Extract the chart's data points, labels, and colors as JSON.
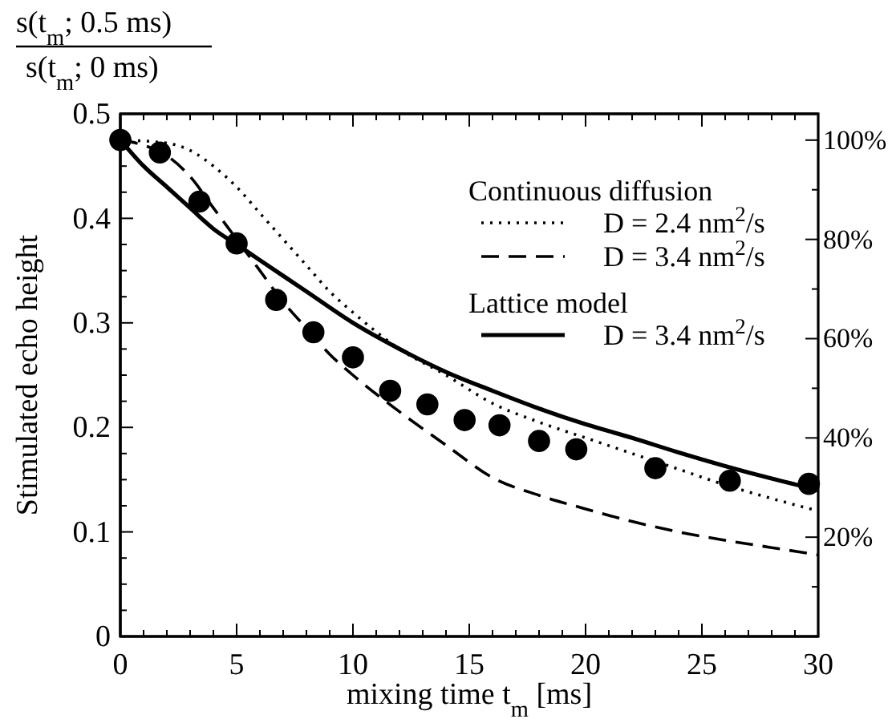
{
  "chart_data": {
    "type": "line",
    "title": "s(t$_{m}$; 0.5 ms)",
    "subtitle": "s(t$_{m}$; 0 ms)",
    "xlabel": "mixing time t$_{m}$ [ms]",
    "ylabel": "Stimulated echo height",
    "annotations": [
      "Continuous diffusion",
      "Lattice model"
    ],
    "xlim": [
      0,
      30
    ],
    "xticks": [
      0,
      {
        "value": 1,
        "label": null
      },
      {
        "value": 2,
        "label": null
      },
      {
        "value": 3,
        "label": null
      },
      {
        "value": 4,
        "label": null
      },
      5,
      {
        "value": 6,
        "label": null
      },
      {
        "value": 7,
        "label": null
      },
      {
        "value": 8,
        "label": null
      },
      {
        "value": 9,
        "label": null
      },
      10,
      {
        "value": 11,
        "label": null
      },
      {
        "value": 12,
        "label": null
      },
      {
        "value": 13,
        "label": null
      },
      {
        "value": 14,
        "label": null
      },
      15,
      {
        "value": 16,
        "label": null
      },
      {
        "value": 17,
        "label": null
      },
      {
        "value": 18,
        "label": null
      },
      {
        "value": 19,
        "label": null
      },
      20,
      {
        "value": 21,
        "label": null
      },
      {
        "value": 22,
        "label": null
      },
      {
        "value": 23,
        "label": null
      },
      {
        "value": 24,
        "label": null
      },
      25,
      {
        "value": 26,
        "label": null
      },
      {
        "value": 27,
        "label": null
      },
      {
        "value": 28,
        "label": null
      },
      {
        "value": 29,
        "label": null
      },
      30
    ],
    "ylim": [
      0,
      0.5
    ],
    "yticks": [
      0,
      {
        "value": 0.025,
        "label": null
      },
      {
        "value": 0.05,
        "label": null
      },
      {
        "value": 0.075,
        "label": null
      },
      0.1,
      {
        "value": 0.125,
        "label": null
      },
      {
        "value": 0.15,
        "label": null
      },
      {
        "value": 0.175,
        "label": null
      },
      0.2,
      {
        "value": 0.225,
        "label": null
      },
      {
        "value": 0.25,
        "label": null
      },
      {
        "value": 0.275,
        "label": null
      },
      0.3,
      {
        "value": 0.325,
        "label": null
      },
      {
        "value": 0.35,
        "label": null
      },
      {
        "value": 0.375,
        "label": null
      },
      0.4,
      {
        "value": 0.425,
        "label": null
      },
      {
        "value": 0.45,
        "label": null
      },
      {
        "value": 0.475,
        "label": null
      },
      0.5
    ],
    "y2lim": [
      0,
      105.3
    ],
    "y2ticks": [
      {
        "value": 10,
        "label": null
      },
      {
        "value": 20,
        "label": "20%"
      },
      {
        "value": 30,
        "label": null
      },
      {
        "value": 40,
        "label": "40%"
      },
      {
        "value": 50,
        "label": null
      },
      {
        "value": 60,
        "label": "60%"
      },
      {
        "value": 70,
        "label": null
      },
      {
        "value": 80,
        "label": "80%"
      },
      {
        "value": 90,
        "label": null
      },
      {
        "value": 100,
        "label": "100%"
      }
    ],
    "grid": false,
    "legend": "top right",
    "series": [
      {
        "name": "D = 2.4 nm$^{2}$/s",
        "color": "#000000",
        "line_style": "dotted",
        "marker": "none",
        "x": [
          0,
          2,
          3,
          4,
          5,
          6,
          7,
          8,
          9,
          10,
          12,
          14,
          16,
          18,
          20,
          22,
          24,
          26,
          28,
          30
        ],
        "values": [
          0.475,
          0.472,
          0.465,
          0.45,
          0.43,
          0.405,
          0.38,
          0.355,
          0.33,
          0.31,
          0.275,
          0.25,
          0.223,
          0.205,
          0.19,
          0.175,
          0.16,
          0.145,
          0.132,
          0.12
        ]
      },
      {
        "name": "D = 3.4 nm$^{2}$/s",
        "color": "#000000",
        "line_style": "dashed",
        "marker": "none",
        "x": [
          0,
          1,
          2,
          3,
          4,
          5,
          6,
          7,
          8,
          9,
          10,
          12,
          14,
          16,
          18,
          20,
          22,
          24,
          26,
          28,
          30
        ],
        "values": [
          0.475,
          0.47,
          0.46,
          0.44,
          0.41,
          0.38,
          0.35,
          0.32,
          0.295,
          0.27,
          0.25,
          0.215,
          0.183,
          0.152,
          0.135,
          0.122,
          0.11,
          0.1,
          0.092,
          0.085,
          0.078
        ]
      },
      {
        "name": "D = 3.4 nm$^{2}$/s",
        "color": "#000000",
        "line_style": "solid",
        "marker": "none",
        "x": [
          0,
          1,
          2,
          3,
          4,
          5,
          6,
          8,
          10,
          12,
          14,
          16,
          18,
          20,
          22,
          24,
          26,
          28,
          30
        ],
        "values": [
          0.475,
          0.45,
          0.43,
          0.41,
          0.39,
          0.375,
          0.36,
          0.33,
          0.3,
          0.275,
          0.253,
          0.235,
          0.218,
          0.203,
          0.19,
          0.176,
          0.163,
          0.151,
          0.14
        ]
      },
      {
        "type": "scatter",
        "color": "#000000",
        "marker": "circle",
        "x": [
          0,
          1.7,
          3.4,
          5.0,
          6.7,
          8.3,
          10.0,
          11.6,
          13.2,
          14.8,
          16.3,
          18.0,
          19.6,
          23.0,
          26.2,
          29.6
        ],
        "values": [
          0.475,
          0.463,
          0.416,
          0.376,
          0.322,
          0.291,
          0.267,
          0.235,
          0.222,
          0.207,
          0.202,
          0.187,
          0.179,
          0.161,
          0.149,
          0.146
        ]
      }
    ]
  }
}
